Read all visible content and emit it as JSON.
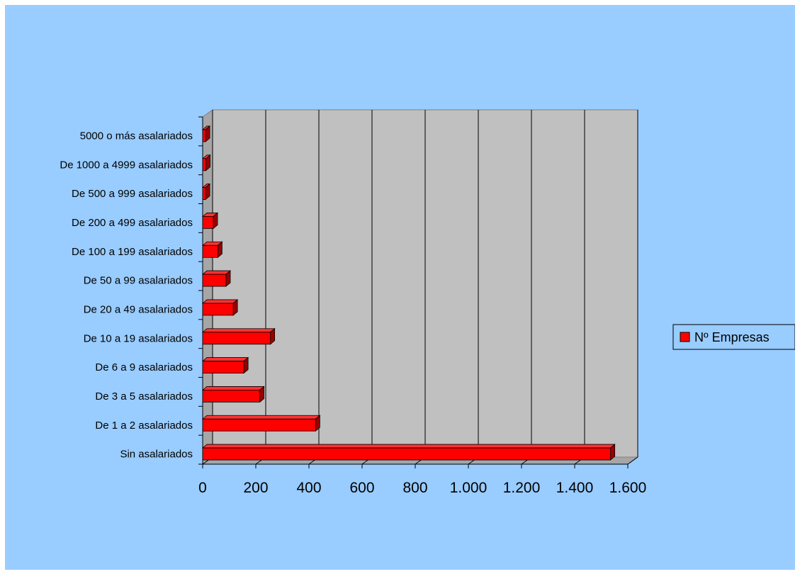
{
  "chart_data": {
    "type": "bar",
    "orientation": "horizontal",
    "categories": [
      "5000 o más asalariados",
      "De 1000 a 4999 asalariados",
      "De 500 a 999 asalariados",
      "De 200 a 499 asalariados",
      "De 100 a 199 asalariados",
      "De 50 a 99 asalariados",
      "De 20 a 49 asalariados",
      "De 10 a 19 asalariados",
      "De 6 a 9 asalariados",
      "De 3 a 5 asalariados",
      "De 1 a 2 asalariados",
      "Sin asalariados"
    ],
    "series": [
      {
        "name": "Nº Empresas",
        "color": "#ff0000",
        "values": [
          4,
          12,
          10,
          40,
          57,
          88,
          115,
          255,
          155,
          215,
          425,
          1535
        ]
      }
    ],
    "xlim": [
      0,
      1600
    ],
    "x_ticks": [
      "0",
      "200",
      "400",
      "600",
      "800",
      "1.000",
      "1.200",
      "1.400",
      "1.600"
    ],
    "grid": "vertical",
    "legend_position": "right",
    "plot_background": "#c0c0c0",
    "chart_background": "#99ccff"
  }
}
